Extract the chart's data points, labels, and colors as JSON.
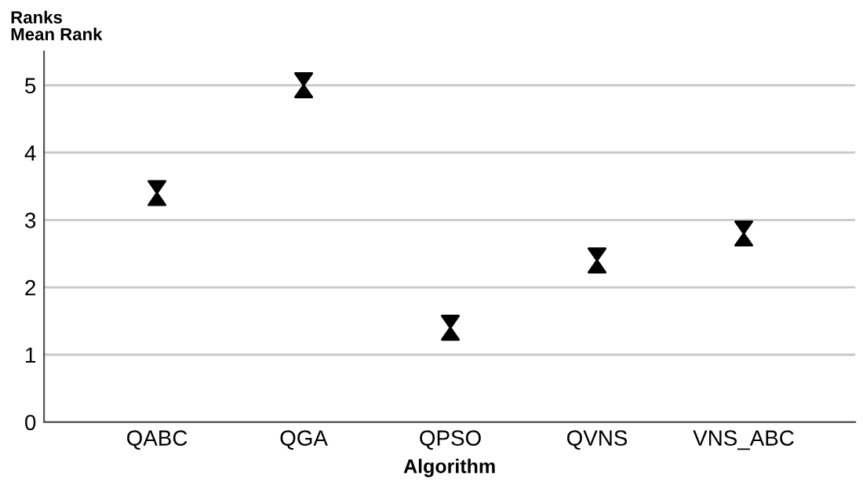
{
  "chart_data": {
    "type": "scatter",
    "title": "Ranks",
    "ylabel": "Mean Rank",
    "xlabel": "Algorithm",
    "categories": [
      "QABC",
      "QGA",
      "QPSO",
      "QVNS",
      "VNS_ABC"
    ],
    "series": [
      {
        "color": "#000000",
        "values": [
          3.4,
          5.0,
          1.4,
          2.4,
          2.8
        ]
      }
    ],
    "ylim": [
      0,
      5.5
    ],
    "yticks": [
      0,
      1,
      2,
      3,
      4,
      5
    ],
    "grid": "y"
  }
}
